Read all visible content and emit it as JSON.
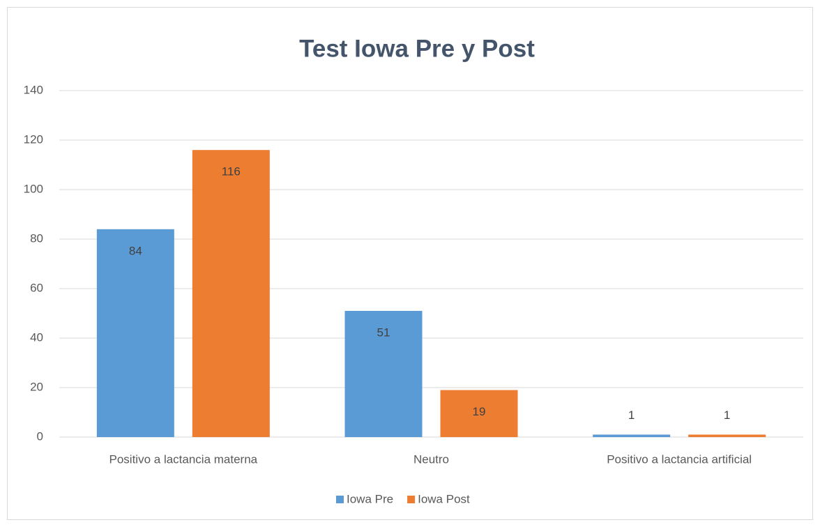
{
  "chart_data": {
    "type": "bar",
    "title": "Test Iowa Pre y Post",
    "categories": [
      "Positivo a lactancia materna",
      "Neutro",
      "Positivo a lactancia artificial"
    ],
    "series": [
      {
        "name": "Iowa Pre",
        "color": "#5b9bd5",
        "values": [
          84,
          51,
          1
        ]
      },
      {
        "name": "Iowa Post",
        "color": "#ed7d31",
        "values": [
          116,
          19,
          1
        ]
      }
    ],
    "ylim": [
      0,
      140
    ],
    "yticks": [
      0,
      20,
      40,
      60,
      80,
      100,
      120,
      140
    ],
    "grid": true,
    "legend": "bottom"
  }
}
